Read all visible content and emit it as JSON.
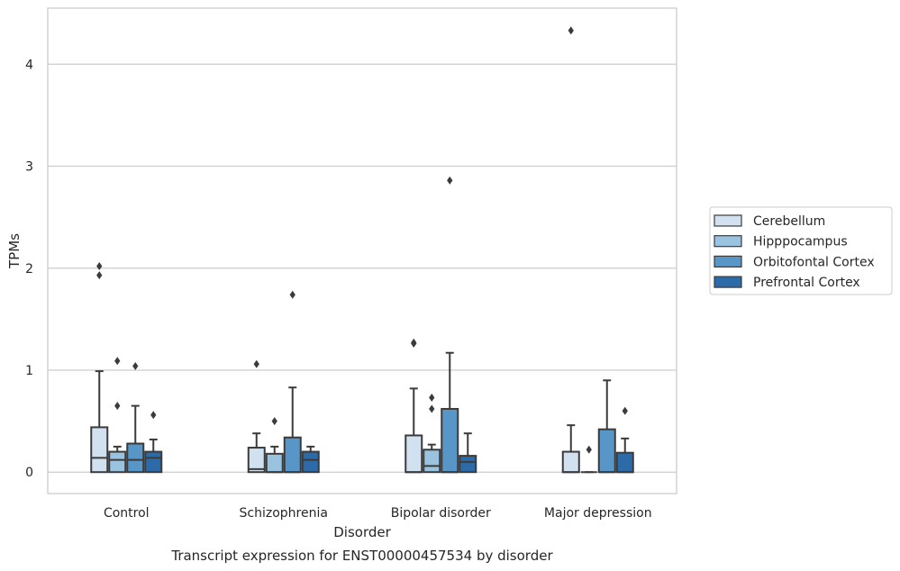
{
  "chart_data": {
    "type": "box",
    "title": "Transcript expression for ENST00000457534 by disorder",
    "xlabel": "Disorder",
    "ylabel": "TPMs",
    "ylim": [
      -0.21,
      4.55
    ],
    "yticks": [
      0,
      1,
      2,
      3,
      4
    ],
    "grid": true,
    "legend_position": "right",
    "categories": [
      "Control",
      "Schizophrenia",
      "Bipolar disorder",
      "Major depression"
    ],
    "series": [
      {
        "name": "Cerebellum",
        "color": "#d1e1f0",
        "boxes": [
          {
            "whisker_low": 0,
            "q1": 0,
            "median": 0.14,
            "q3": 0.44,
            "whisker_high": 0.99,
            "outliers": [
              1.93,
              2.02
            ]
          },
          {
            "whisker_low": 0,
            "q1": 0,
            "median": 0.03,
            "q3": 0.24,
            "whisker_high": 0.38,
            "outliers": [
              1.06
            ]
          },
          {
            "whisker_low": 0,
            "q1": 0,
            "median": 0,
            "q3": 0.36,
            "whisker_high": 0.82,
            "outliers": [
              1.26,
              1.27
            ]
          },
          {
            "whisker_low": 0,
            "q1": 0,
            "median": 0,
            "q3": 0.2,
            "whisker_high": 0.46,
            "outliers": [
              4.33
            ]
          }
        ]
      },
      {
        "name": "Hipppocampus",
        "color": "#9ac3df",
        "boxes": [
          {
            "whisker_low": 0,
            "q1": 0,
            "median": 0.12,
            "q3": 0.2,
            "whisker_high": 0.25,
            "outliers": [
              0.65,
              1.09
            ]
          },
          {
            "whisker_low": 0,
            "q1": 0,
            "median": 0,
            "q3": 0.18,
            "whisker_high": 0.25,
            "outliers": [
              0.5
            ]
          },
          {
            "whisker_low": 0,
            "q1": 0,
            "median": 0.06,
            "q3": 0.22,
            "whisker_high": 0.27,
            "outliers": [
              0.62,
              0.73
            ]
          },
          {
            "whisker_low": 0,
            "q1": 0,
            "median": 0,
            "q3": 0,
            "whisker_high": 0,
            "outliers": [
              0.22
            ]
          }
        ]
      },
      {
        "name": "Orbitofontal Cortex",
        "color": "#5796c6",
        "boxes": [
          {
            "whisker_low": 0,
            "q1": 0,
            "median": 0.12,
            "q3": 0.28,
            "whisker_high": 0.65,
            "outliers": [
              1.04
            ]
          },
          {
            "whisker_low": 0,
            "q1": 0,
            "median": 0,
            "q3": 0.34,
            "whisker_high": 0.83,
            "outliers": [
              1.74
            ]
          },
          {
            "whisker_low": 0,
            "q1": 0,
            "median": 0,
            "q3": 0.62,
            "whisker_high": 1.17,
            "outliers": [
              2.86
            ]
          },
          {
            "whisker_low": 0,
            "q1": 0,
            "median": 0,
            "q3": 0.42,
            "whisker_high": 0.9,
            "outliers": []
          }
        ]
      },
      {
        "name": "Prefrontal Cortex",
        "color": "#2c6aa8",
        "boxes": [
          {
            "whisker_low": 0,
            "q1": 0,
            "median": 0.14,
            "q3": 0.2,
            "whisker_high": 0.32,
            "outliers": [
              0.56
            ]
          },
          {
            "whisker_low": 0,
            "q1": 0,
            "median": 0.12,
            "q3": 0.2,
            "whisker_high": 0.25,
            "outliers": []
          },
          {
            "whisker_low": 0,
            "q1": 0,
            "median": 0.1,
            "q3": 0.16,
            "whisker_high": 0.38,
            "outliers": []
          },
          {
            "whisker_low": 0,
            "q1": 0,
            "median": 0,
            "q3": 0.19,
            "whisker_high": 0.33,
            "outliers": [
              0.6
            ]
          }
        ]
      }
    ]
  }
}
